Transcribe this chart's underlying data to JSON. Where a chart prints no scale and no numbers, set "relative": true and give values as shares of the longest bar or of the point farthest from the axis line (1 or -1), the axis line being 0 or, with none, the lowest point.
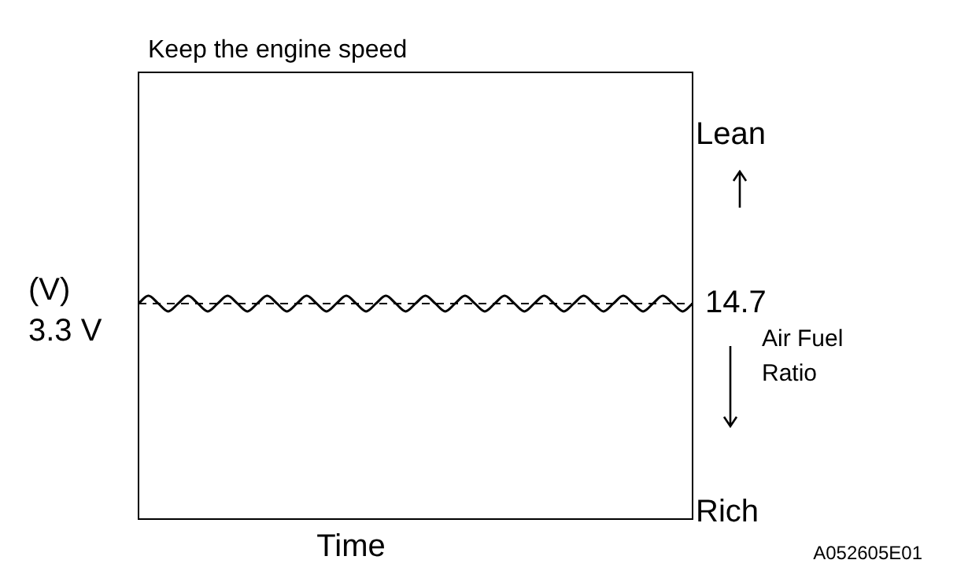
{
  "chart_data": {
    "type": "line",
    "title": "Keep the engine speed",
    "xlabel": "Time",
    "ylabel": "(V)",
    "y2label": "Air Fuel Ratio",
    "relative": true,
    "categories": [
      null,
      null,
      null,
      null,
      null,
      null,
      null,
      null,
      null,
      null,
      null,
      null,
      null,
      null,
      null,
      null,
      null,
      null,
      null,
      null,
      null,
      null,
      null,
      null,
      null,
      null,
      null,
      null,
      null,
      null,
      null,
      null,
      null,
      null,
      null,
      null,
      null,
      null,
      null,
      null,
      null,
      null,
      null,
      null,
      null,
      null,
      null,
      null,
      null,
      null,
      null,
      null,
      null,
      null,
      null,
      null,
      null
    ],
    "series": [
      {
        "color": "#000000",
        "values": [
          0.965,
          1,
          0.965,
          0.93,
          0.965,
          1,
          0.965,
          0.93,
          0.965,
          1,
          0.965,
          0.93,
          0.965,
          1,
          0.965,
          0.93,
          0.965,
          1,
          0.965,
          0.93,
          0.965,
          1,
          0.965,
          0.93,
          0.965,
          1,
          0.965,
          0.93,
          0.965,
          1,
          0.965,
          0.93,
          0.965,
          1,
          0.965,
          0.93,
          0.965,
          1,
          0.965,
          0.93,
          0.965,
          1,
          0.965,
          0.93,
          0.965,
          1,
          0.965,
          0.93,
          0.965,
          1,
          0.965,
          0.93,
          0.965,
          1,
          0.965,
          0.93,
          0.965
        ]
      }
    ],
    "ref_lines": [
      {
        "axis": "y",
        "value": 0.965,
        "label": "3.3 V",
        "line_style": "dashed"
      }
    ],
    "annotations": [
      "Lean",
      "14.7",
      "Rich",
      "A052605E01"
    ],
    "marker": "none",
    "line_style": "solid",
    "legend": false
  }
}
